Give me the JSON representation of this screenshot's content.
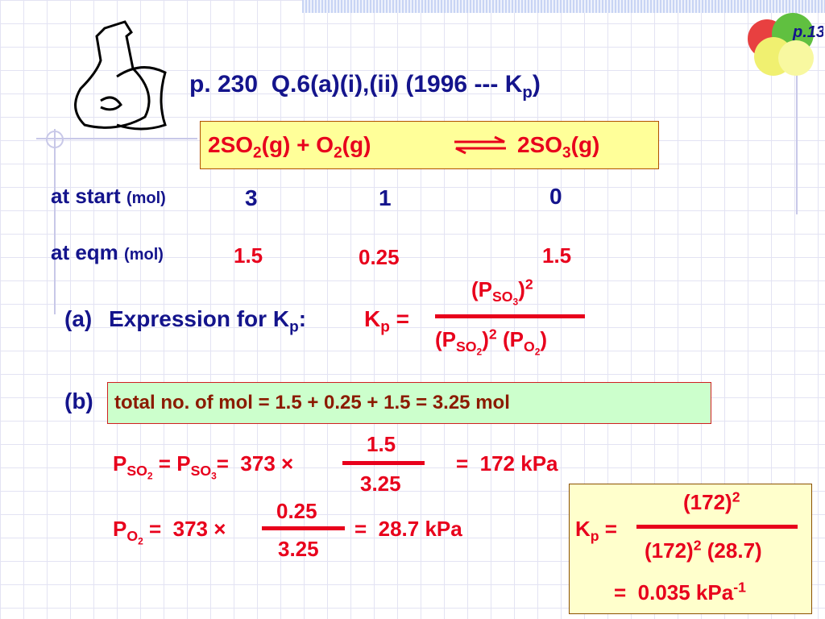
{
  "badge": "p.13",
  "title": [
    "p. 230  Q.6(a)(i),(ii) (1996 --- K",
    "p",
    ")"
  ],
  "equation": {
    "reactants": [
      "2SO",
      "2",
      "(g) + O",
      "2",
      "(g)"
    ],
    "products": [
      "2SO",
      "3",
      "(g)"
    ]
  },
  "table": {
    "rows": [
      {
        "label": "at start",
        "unit": "(mol)",
        "values": [
          "3",
          "1",
          "0"
        ]
      },
      {
        "label": "at eqm",
        "unit": "(mol)",
        "values": [
          "1.5",
          "0.25",
          "1.5"
        ]
      }
    ]
  },
  "part_a": {
    "label": "(a)",
    "text": [
      "Expression for K",
      "p",
      ":"
    ],
    "lhs": [
      "K",
      "p",
      " ="
    ],
    "numerator": [
      "(P",
      "SO",
      "3",
      ")",
      "2"
    ],
    "denominator": [
      "(P",
      "SO",
      "2",
      ")",
      "2",
      " (P",
      "O",
      "2",
      ")"
    ]
  },
  "part_b": {
    "label": "(b)",
    "total": "total no. of mol = 1.5 + 0.25 + 1.5 = 3.25 mol",
    "p_so": {
      "lhs": [
        "P",
        "SO",
        "2",
        " = P",
        "SO",
        "3",
        "=  373 ×"
      ],
      "numerator": "1.5",
      "denominator": "3.25",
      "result": "=  172 kPa"
    },
    "p_o2": {
      "lhs": [
        "P",
        "O",
        "2",
        " =  373 ×"
      ],
      "numerator": "0.25",
      "denominator": "3.25",
      "result": "=  28.7 kPa"
    },
    "kp": {
      "lhs": [
        "K",
        "p",
        " ="
      ],
      "numerator": [
        "(172)",
        "2"
      ],
      "denominator": [
        "(172)",
        "2",
        " (28.7)"
      ],
      "result": [
        "=  0.035 kPa",
        "-1"
      ]
    }
  }
}
